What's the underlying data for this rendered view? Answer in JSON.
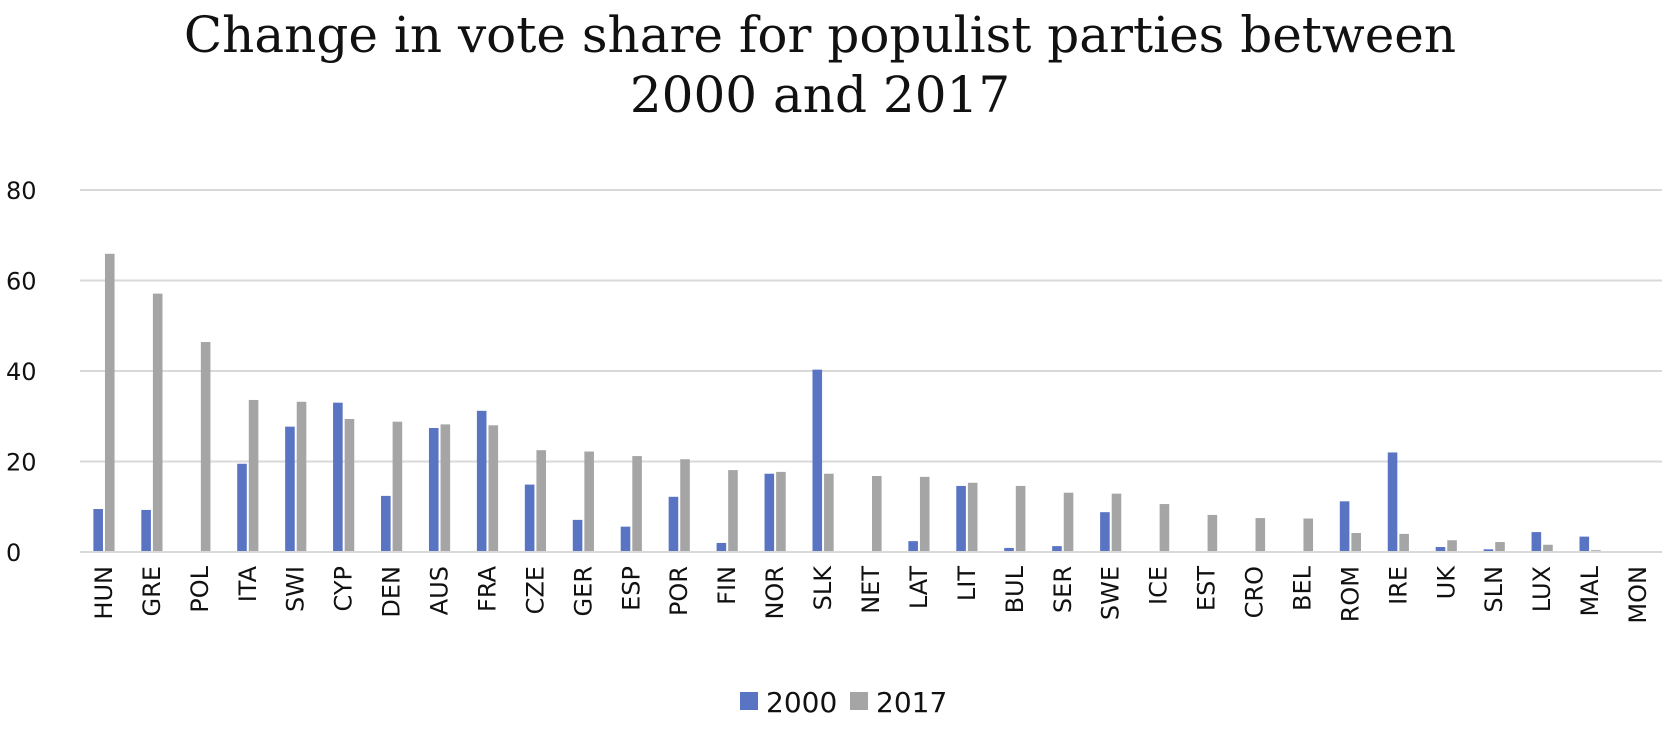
{
  "chart_data": {
    "type": "bar",
    "title_lines": [
      "Change in vote share for populist parties between",
      "2000 and 2017"
    ],
    "xlabel": "",
    "ylabel": "",
    "ylim": [
      0,
      80
    ],
    "yticks": [
      0,
      20,
      40,
      60,
      80
    ],
    "grid": true,
    "legend_position": "bottom",
    "categories": [
      "HUN",
      "GRE",
      "POL",
      "ITA",
      "SWI",
      "CYP",
      "DEN",
      "AUS",
      "FRA",
      "CZE",
      "GER",
      "ESP",
      "POR",
      "FIN",
      "NOR",
      "SLK",
      "NET",
      "LAT",
      "LIT",
      "BUL",
      "SER",
      "SWE",
      "ICE",
      "EST",
      "CRO",
      "BEL",
      "ROM",
      "IRE",
      "UK",
      "SLN",
      "LUX",
      "MAL",
      "MON"
    ],
    "series": [
      {
        "name": "2000",
        "color": "#5a74c4",
        "values": [
          9.5,
          9.3,
          0,
          19.5,
          27.7,
          33,
          12.4,
          27.4,
          31.2,
          14.9,
          7.1,
          5.6,
          12.2,
          2,
          17.3,
          40.3,
          0,
          2.4,
          14.6,
          0.9,
          1.3,
          8.8,
          0.2,
          0,
          0,
          0,
          11.2,
          22,
          1.1,
          0.6,
          4.4,
          3.4,
          0
        ],
        "values_comment": ""
      },
      {
        "name": "2017",
        "color": "#a5a5a5",
        "values": [
          65.9,
          57.1,
          46.4,
          33.6,
          33.2,
          29.4,
          28.8,
          28.2,
          28,
          22.5,
          22.2,
          21.2,
          20.5,
          18.1,
          17.7,
          17.3,
          16.8,
          16.6,
          15.3,
          14.6,
          13.1,
          12.9,
          10.6,
          8.2,
          7.5,
          7.4,
          4.2,
          4.0,
          2.6,
          2.2,
          1.6,
          0.4,
          0
        ]
      }
    ]
  }
}
